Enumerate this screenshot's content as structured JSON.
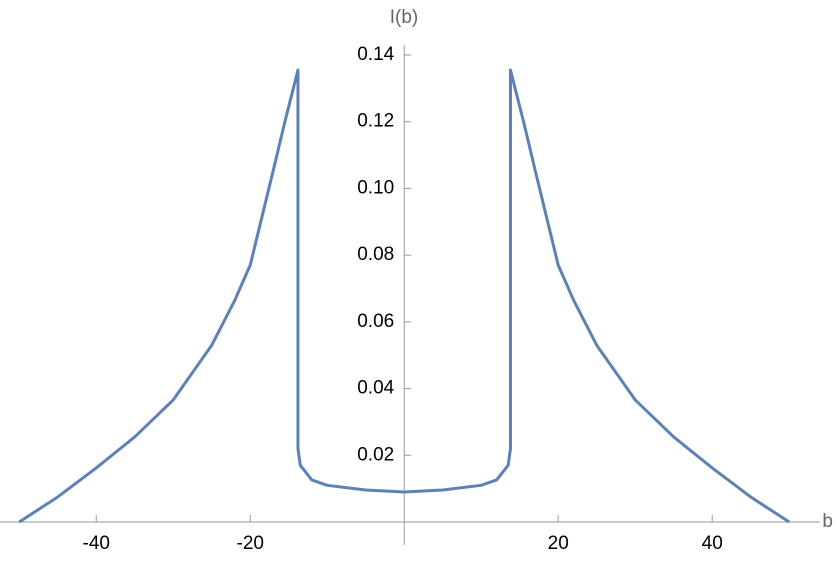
{
  "chart_data": {
    "type": "line",
    "x_label": "b",
    "y_label": "I(b)",
    "xlim": [
      -52.5,
      54
    ],
    "ylim": [
      0,
      0.143
    ],
    "xticks": [
      -40,
      -20,
      20,
      40
    ],
    "yticks": [
      0.02,
      0.04,
      0.06,
      0.08,
      {
        "value": 0.1,
        "label": "0.10"
      },
      0.12,
      0.14
    ],
    "series": [
      {
        "color": "#5e81b5",
        "x": [
          -50,
          -45,
          -40,
          -35,
          -30,
          -25,
          -22,
          -20,
          -17,
          -15.5,
          -13.8,
          -13.8,
          -13.5,
          -12,
          -10,
          -5,
          0,
          5,
          10,
          12,
          13.5,
          13.8,
          13.8,
          15.5,
          17,
          20,
          22,
          25,
          30,
          35,
          40,
          45,
          50
        ],
        "values": [
          0,
          0.0075,
          0.0162,
          0.0255,
          0.0366,
          0.053,
          0.0665,
          0.077,
          0.1055,
          0.12,
          0.1355,
          0.022,
          0.017,
          0.0126,
          0.011,
          0.0096,
          0.009,
          0.0096,
          0.011,
          0.0126,
          0.017,
          0.022,
          0.1355,
          0.12,
          0.1055,
          0.077,
          0.0665,
          0.053,
          0.0366,
          0.0255,
          0.0162,
          0.0075,
          0
        ]
      }
    ]
  }
}
